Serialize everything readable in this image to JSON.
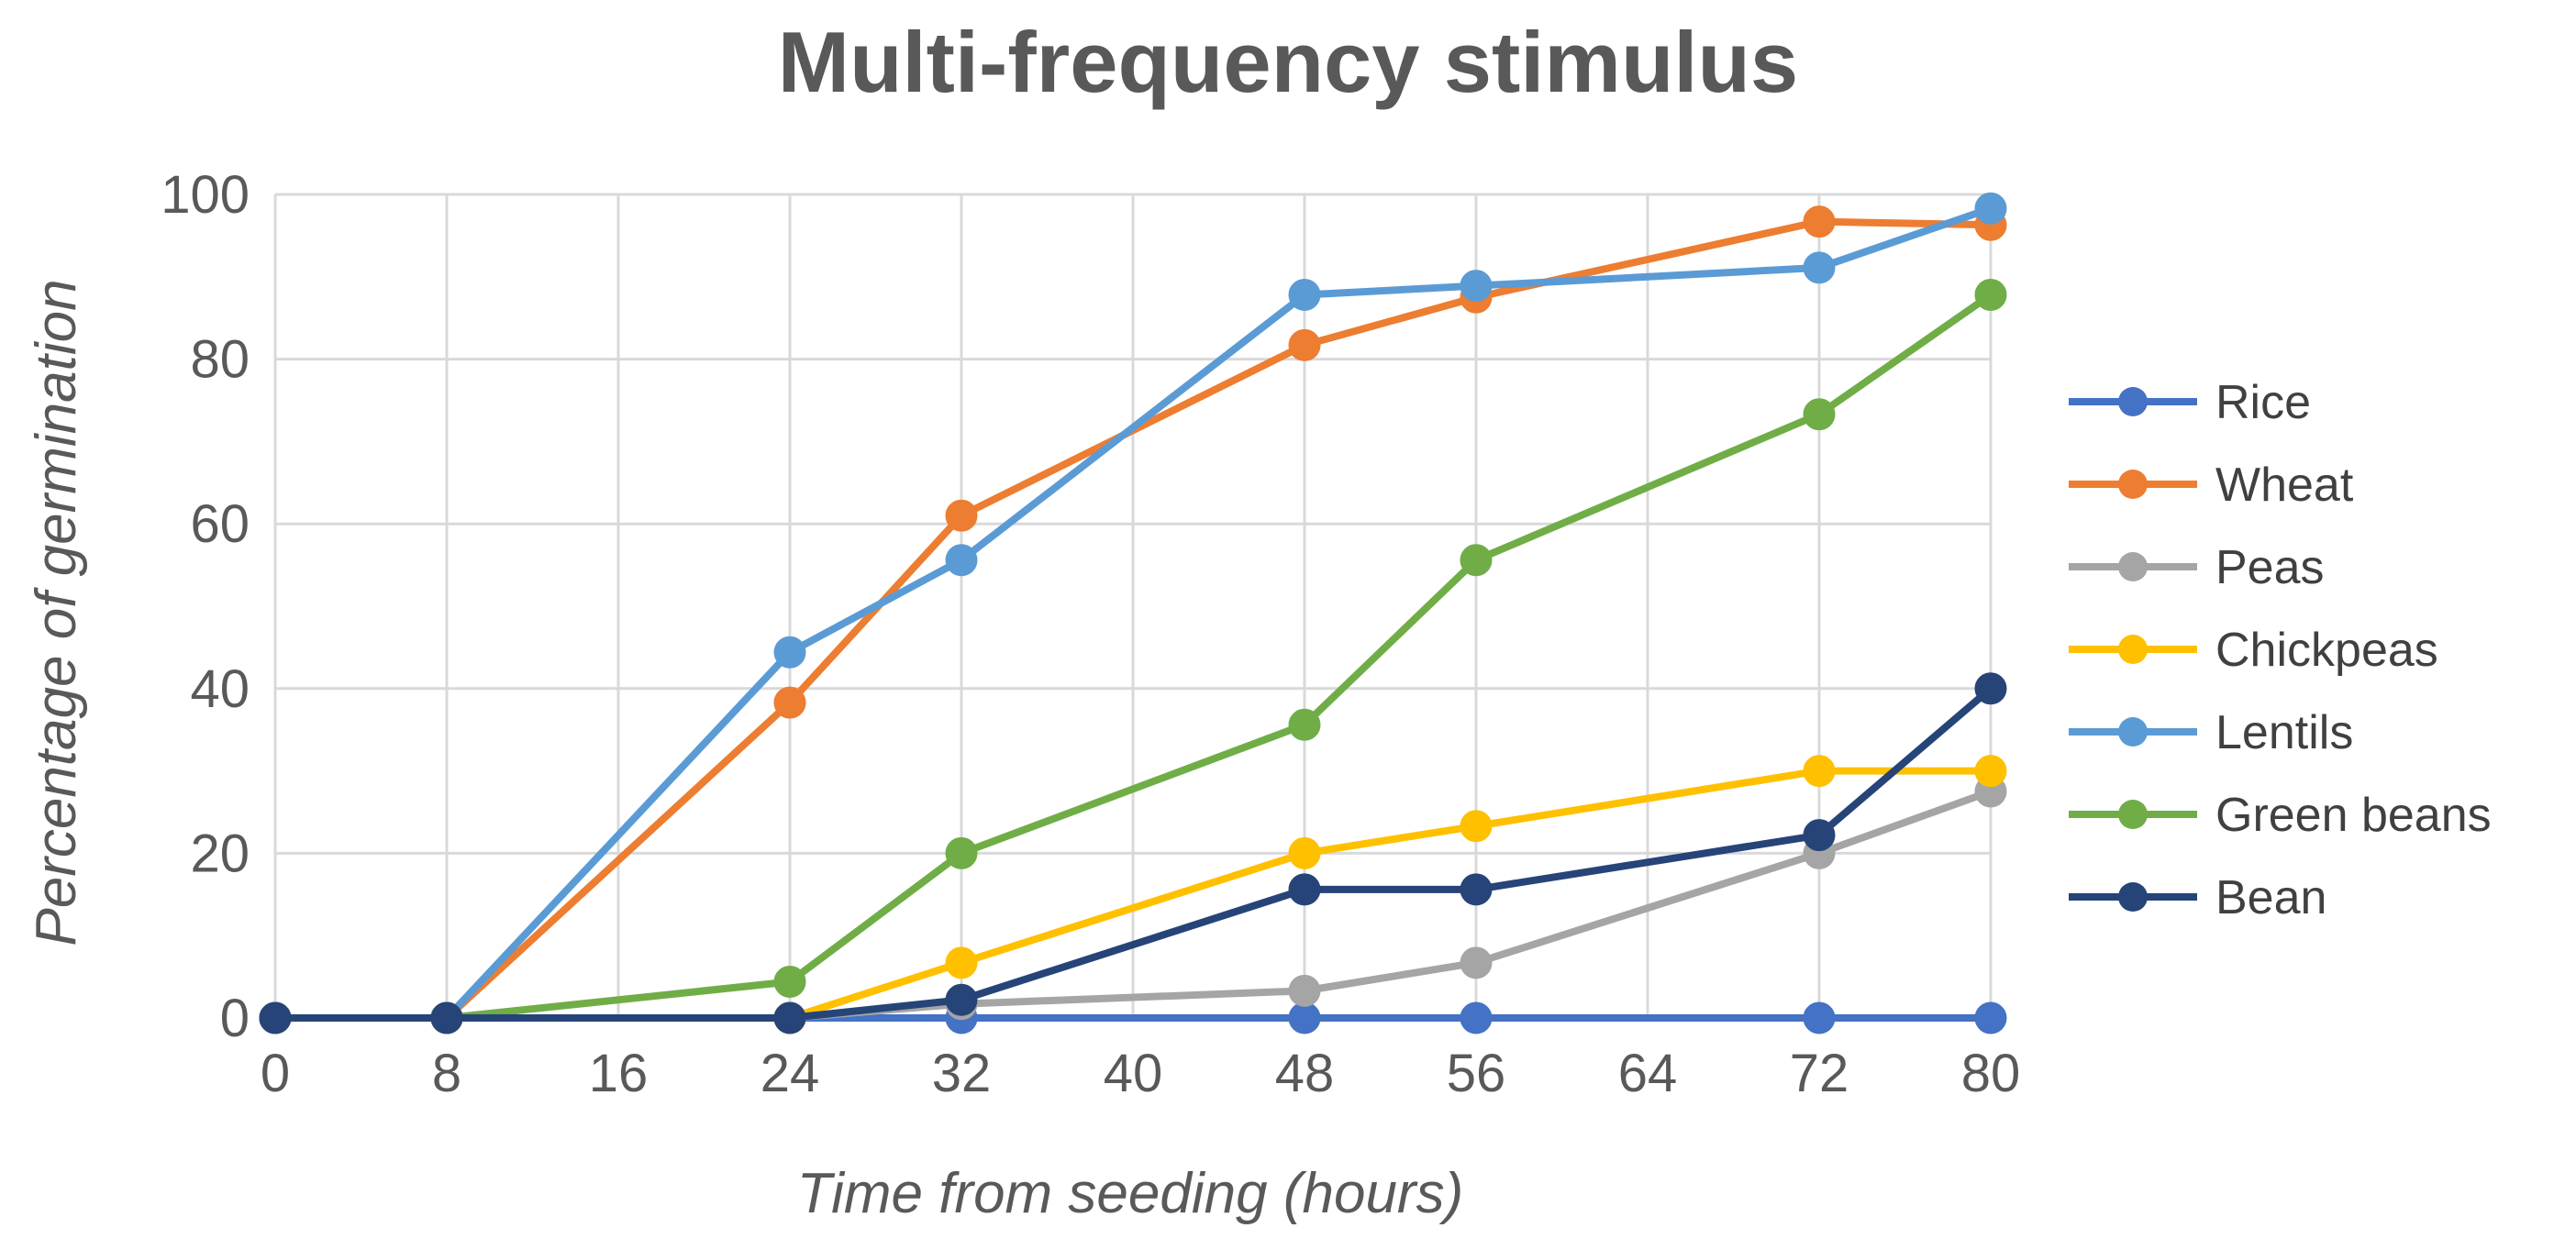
{
  "chart_data": {
    "type": "line",
    "title": "Multi-frequency stimulus",
    "xlabel": "Time from seeding (hours)",
    "ylabel": "Percentage of germination",
    "xlim": [
      0,
      80
    ],
    "ylim": [
      0,
      100
    ],
    "xticks": [
      0,
      8,
      16,
      24,
      32,
      40,
      48,
      56,
      64,
      72,
      80
    ],
    "yticks": [
      0,
      20,
      40,
      60,
      80,
      100
    ],
    "grid": true,
    "legend_position": "right",
    "x": [
      0,
      8,
      24,
      32,
      48,
      56,
      72,
      80
    ],
    "series": [
      {
        "name": "Rice",
        "color": "#4472c4",
        "values": [
          0,
          0,
          0,
          0,
          0,
          0,
          0,
          0
        ]
      },
      {
        "name": "Wheat",
        "color": "#ed7d31",
        "values": [
          0,
          0,
          38.3,
          61,
          81.7,
          87.5,
          96.7,
          96.3
        ]
      },
      {
        "name": "Peas",
        "color": "#a5a5a5",
        "values": [
          0,
          0,
          0,
          1.7,
          3.3,
          6.7,
          20,
          27.5
        ]
      },
      {
        "name": "Chickpeas",
        "color": "#ffc000",
        "values": [
          0,
          0,
          0,
          6.7,
          20,
          23.3,
          30,
          30
        ]
      },
      {
        "name": "Lentils",
        "color": "#5b9bd5",
        "values": [
          0,
          0,
          44.4,
          55.6,
          87.8,
          88.9,
          91.1,
          98.3
        ]
      },
      {
        "name": "Green beans",
        "color": "#70ad47",
        "values": [
          0,
          0,
          4.4,
          20,
          35.6,
          55.6,
          73.3,
          87.8
        ]
      },
      {
        "name": "Bean",
        "color": "#264478",
        "values": [
          0,
          0,
          0,
          2.2,
          15.6,
          15.6,
          22.2,
          40
        ]
      }
    ]
  }
}
